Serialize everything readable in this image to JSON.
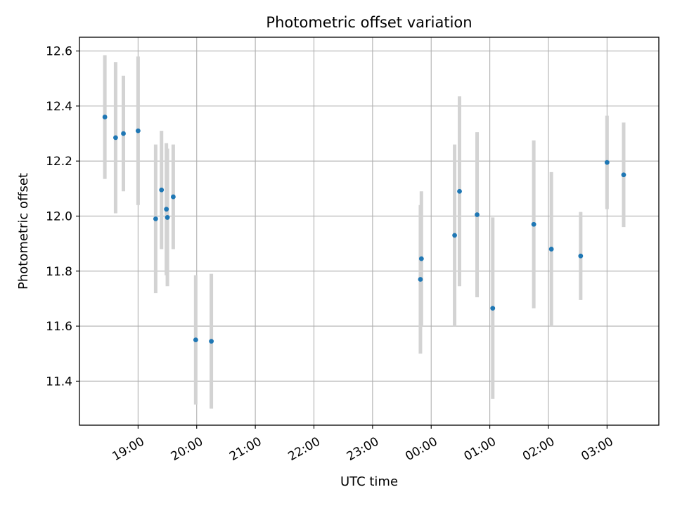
{
  "chart_data": {
    "type": "scatter",
    "title": "Photometric offset variation",
    "xlabel": "UTC time",
    "ylabel": "Photometric offset",
    "grid": true,
    "x_axis": "time",
    "xlim": [
      "18:00",
      "03:53"
    ],
    "ylim": [
      11.24,
      12.65
    ],
    "x_ticks": [
      "19:00",
      "20:00",
      "21:00",
      "22:00",
      "23:00",
      "00:00",
      "01:00",
      "02:00",
      "03:00"
    ],
    "y_ticks": [
      "11.4",
      "11.6",
      "11.8",
      "12.0",
      "12.2",
      "12.4",
      "12.6"
    ],
    "colors": {
      "marker": "#1f77b4",
      "errorbar": "#d3d3d3"
    },
    "series": [
      {
        "x": [
          "18:26",
          "18:37",
          "18:45",
          "19:00",
          "19:18",
          "19:24",
          "19:29",
          "19:30",
          "19:36",
          "19:59",
          "20:15",
          "23:49",
          "23:50",
          "00:24",
          "00:29",
          "00:47",
          "01:03",
          "01:45",
          "02:03",
          "02:33",
          "03:00",
          "03:17"
        ],
        "y": [
          12.36,
          12.285,
          12.3,
          12.31,
          11.99,
          12.095,
          12.025,
          11.995,
          12.07,
          11.55,
          11.545,
          11.77,
          11.845,
          11.93,
          12.09,
          12.005,
          11.665,
          11.97,
          11.88,
          11.855,
          12.195,
          12.15
        ],
        "yerr": [
          0.225,
          0.275,
          0.21,
          0.27,
          0.27,
          0.215,
          0.24,
          0.25,
          0.19,
          0.235,
          0.245,
          0.27,
          0.245,
          0.33,
          0.345,
          0.3,
          0.33,
          0.305,
          0.28,
          0.16,
          0.17,
          0.19
        ]
      }
    ]
  }
}
